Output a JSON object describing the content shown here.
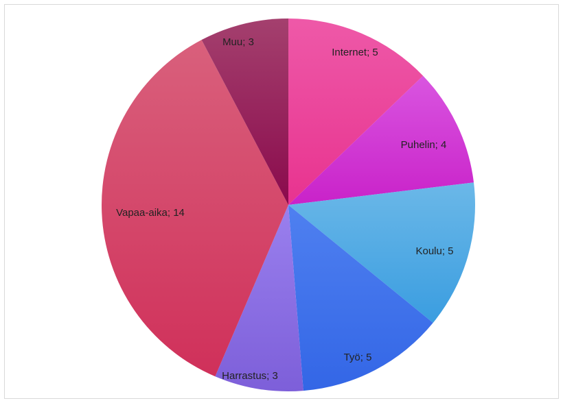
{
  "chart_data": {
    "type": "pie",
    "title": "",
    "start_angle_deg": 0,
    "direction": "clockwise",
    "slices": [
      {
        "label": "Internet",
        "value": 5,
        "data_label": "Internet; 5",
        "color": "#e8338f",
        "color_light": "#ee59a8"
      },
      {
        "label": "Puhelin",
        "value": 4,
        "data_label": "Puhelin; 4",
        "color": "#c922c9",
        "color_light": "#d955e0"
      },
      {
        "label": "Koulu",
        "value": 5,
        "data_label": "Koulu; 5",
        "color": "#3a9de0",
        "color_light": "#6bb8e8"
      },
      {
        "label": "Työ",
        "value": 5,
        "data_label": "Työ; 5",
        "color": "#3366e6",
        "color_light": "#4f80f0"
      },
      {
        "label": "Harrastus",
        "value": 3,
        "data_label": "Harrastus; 3",
        "color": "#7d5fd9",
        "color_light": "#9a80ee"
      },
      {
        "label": "Vapaa-aika",
        "value": 14,
        "data_label": "Vapaa-aika; 14",
        "color": "#d0305a",
        "color_light": "#d9607c"
      },
      {
        "label": "Muu",
        "value": 3,
        "data_label": "Muu; 3",
        "color": "#8a0a4c",
        "color_light": "#a4406e"
      }
    ]
  }
}
